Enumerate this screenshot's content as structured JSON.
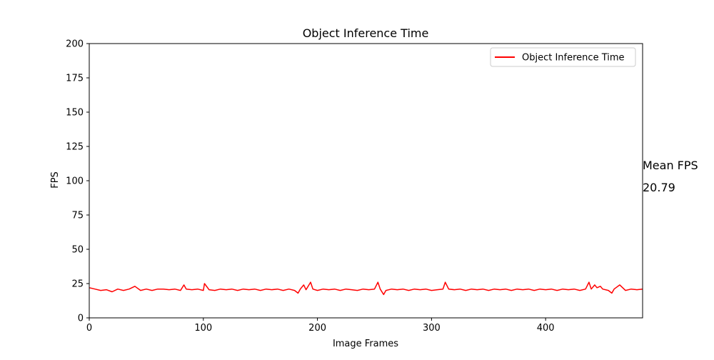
{
  "chart_data": {
    "type": "line",
    "title": "Object Inference Time",
    "xlabel": "Image Frames",
    "ylabel": "FPS",
    "xlim": [
      0,
      485
    ],
    "ylim": [
      0,
      200
    ],
    "x_ticks": [
      0,
      100,
      200,
      300,
      400
    ],
    "y_ticks": [
      0,
      25,
      50,
      75,
      100,
      125,
      150,
      175,
      200
    ],
    "grid": false,
    "legend": {
      "placement": "top-right",
      "entries": [
        "Object Inference Time"
      ]
    },
    "annotation": {
      "label": "Mean FPS",
      "value": "20.79"
    },
    "series": [
      {
        "name": "Object Inference Time",
        "color": "#ff0000",
        "x": [
          0,
          5,
          10,
          15,
          20,
          25,
          30,
          35,
          40,
          45,
          50,
          55,
          60,
          65,
          70,
          75,
          80,
          83,
          85,
          90,
          95,
          100,
          101,
          105,
          110,
          115,
          120,
          125,
          130,
          135,
          140,
          145,
          150,
          155,
          160,
          165,
          170,
          175,
          180,
          183,
          185,
          188,
          190,
          194,
          196,
          200,
          205,
          210,
          215,
          220,
          225,
          230,
          235,
          240,
          245,
          250,
          253,
          255,
          258,
          260,
          265,
          270,
          275,
          280,
          285,
          290,
          295,
          300,
          305,
          310,
          312,
          315,
          320,
          325,
          330,
          335,
          340,
          345,
          350,
          355,
          360,
          365,
          370,
          375,
          380,
          385,
          390,
          395,
          400,
          405,
          410,
          415,
          420,
          425,
          430,
          435,
          438,
          440,
          443,
          445,
          448,
          450,
          455,
          458,
          460,
          465,
          470,
          475,
          480,
          485
        ],
        "values": [
          22,
          21,
          20,
          20.5,
          19,
          21,
          20,
          21,
          23,
          20,
          21,
          20,
          21,
          21,
          20.5,
          21,
          20,
          24,
          21,
          20.5,
          21,
          20,
          25,
          20.5,
          20,
          21,
          20.5,
          21,
          20,
          21,
          20.5,
          21,
          20,
          21,
          20.5,
          21,
          20,
          21,
          20,
          18,
          21,
          24,
          20.5,
          26,
          21,
          20,
          21,
          20.5,
          21,
          20,
          21,
          20.5,
          20,
          21,
          20.5,
          21,
          26,
          21,
          17,
          20,
          21,
          20.5,
          21,
          20,
          21,
          20.5,
          21,
          20,
          20.5,
          21,
          26,
          21,
          20.5,
          21,
          20,
          21,
          20.5,
          21,
          20,
          21,
          20.5,
          21,
          20,
          21,
          20.5,
          21,
          20,
          21,
          20.5,
          21,
          20,
          21,
          20.5,
          21,
          20,
          21,
          26,
          21,
          24,
          22,
          23,
          21,
          20,
          18,
          21,
          24,
          20,
          21,
          20.5,
          21
        ]
      }
    ]
  }
}
